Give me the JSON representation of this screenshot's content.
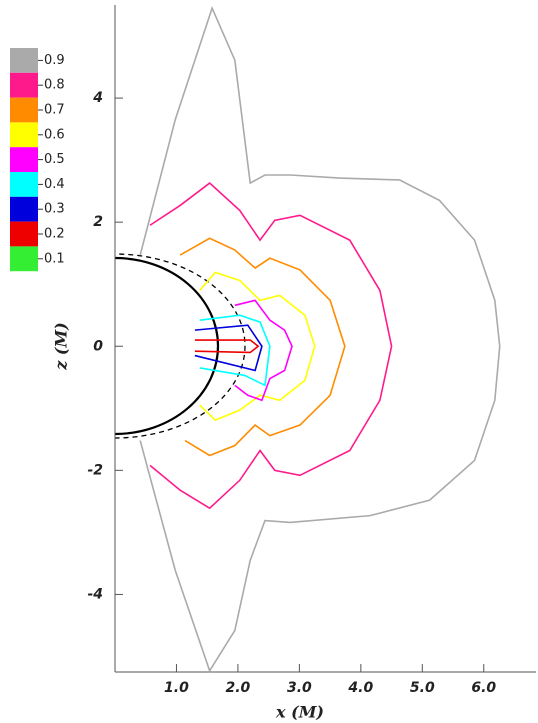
{
  "chart_data": {
    "type": "contour",
    "xlabel": "x (M)",
    "ylabel": "z (M)",
    "xlim": [
      0,
      6.85
    ],
    "ylim": [
      -5.25,
      5.5
    ],
    "xticks": [
      {
        "value": 1,
        "label": "1.0"
      },
      {
        "value": 2,
        "label": "2.0"
      },
      {
        "value": 3,
        "label": "3.0"
      },
      {
        "value": 4,
        "label": "4.0"
      },
      {
        "value": 5,
        "label": "5.0"
      },
      {
        "value": 6,
        "label": "6.0"
      }
    ],
    "yticks": [
      4,
      2,
      0,
      -2,
      -4
    ],
    "levels": [
      0.9,
      0.8,
      0.7,
      0.6,
      0.5,
      0.4,
      0.3,
      0.2,
      0.1
    ],
    "colors": [
      "#aaaaaa",
      "#ff1a8c",
      "#ff8c00",
      "#ffff00",
      "#ff00ff",
      "#00ffff",
      "#0000dd",
      "#ee0000",
      "#33ee33"
    ],
    "contours": [
      {
        "level": 0.9,
        "x": [
          0.41,
          0.98,
          1.58,
          1.95,
          2.2,
          2.44,
          2.85,
          3.66,
          4.63,
          5.28,
          5.85,
          6.18,
          6.26,
          6.18,
          5.85,
          5.12,
          4.15,
          2.85,
          2.44,
          2.2,
          1.95,
          1.54,
          0.98,
          0.41
        ],
        "z": [
          1.47,
          3.65,
          5.45,
          4.61,
          2.63,
          2.76,
          2.76,
          2.71,
          2.68,
          2.35,
          1.71,
          0.74,
          0,
          -0.87,
          -1.84,
          -2.48,
          -2.73,
          -2.84,
          -2.81,
          -3.45,
          -4.58,
          -5.23,
          -3.61,
          -1.52
        ]
      },
      {
        "level": 0.8,
        "x": [
          0.57,
          1.06,
          1.54,
          2.03,
          2.36,
          2.6,
          3.01,
          3.82,
          4.31,
          4.5,
          4.31,
          3.82,
          3.01,
          2.6,
          2.36,
          2.03,
          1.54,
          1.06,
          0.57
        ],
        "z": [
          1.95,
          2.27,
          2.63,
          2.19,
          1.71,
          2.03,
          2.11,
          1.71,
          0.9,
          0,
          -0.87,
          -1.68,
          -2.08,
          -2.0,
          -1.68,
          -2.16,
          -2.61,
          -2.32,
          -1.92
        ]
      },
      {
        "level": 0.7,
        "x": [
          1.06,
          1.54,
          1.95,
          2.28,
          2.52,
          3.01,
          3.5,
          3.74,
          3.5,
          3.01,
          2.52,
          2.28,
          1.95,
          1.54,
          1.14
        ],
        "z": [
          1.47,
          1.74,
          1.55,
          1.26,
          1.42,
          1.23,
          0.74,
          0,
          -0.79,
          -1.27,
          -1.44,
          -1.27,
          -1.6,
          -1.76,
          -1.52
        ]
      },
      {
        "level": 0.6,
        "x": [
          1.38,
          1.63,
          2.03,
          2.36,
          2.68,
          3.09,
          3.25,
          3.09,
          2.68,
          2.36,
          2.03,
          1.63,
          1.38
        ],
        "z": [
          0.9,
          1.19,
          1.06,
          0.74,
          0.82,
          0.5,
          0,
          -0.55,
          -0.87,
          -0.79,
          -1.03,
          -1.19,
          -0.95
        ]
      },
      {
        "level": 0.5,
        "x": [
          1.95,
          2.28,
          2.52,
          2.76,
          2.88,
          2.76,
          2.52,
          2.39,
          2.16,
          1.95
        ],
        "z": [
          0.66,
          0.74,
          0.42,
          0.26,
          0,
          -0.39,
          -0.52,
          -0.87,
          -0.79,
          -0.63
        ]
      },
      {
        "level": 0.4,
        "x": [
          1.38,
          2.03,
          2.36,
          2.52,
          2.44,
          2.11,
          1.38
        ],
        "z": [
          0.42,
          0.5,
          0.39,
          0,
          -0.63,
          -0.47,
          -0.35
        ]
      },
      {
        "level": 0.3,
        "x": [
          1.3,
          2.16,
          2.39,
          2.28,
          1.3
        ],
        "z": [
          0.26,
          0.34,
          0,
          -0.39,
          -0.15
        ]
      },
      {
        "level": 0.2,
        "x": [
          1.3,
          2.2,
          2.33,
          2.2,
          1.3
        ],
        "z": [
          0.1,
          0.1,
          0,
          -0.1,
          -0.08
        ]
      }
    ]
  }
}
